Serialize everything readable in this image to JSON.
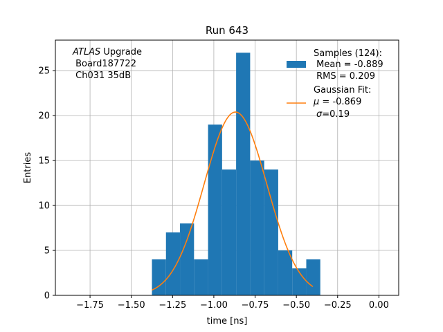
{
  "chart_data": {
    "type": "bar",
    "title": "Run 643",
    "xlabel": "time [ns]",
    "ylabel": "Entries",
    "xlim": [
      -1.96,
      0.12
    ],
    "ylim": [
      0,
      28.4
    ],
    "xticks": [
      -1.75,
      -1.5,
      -1.25,
      -1.0,
      -0.75,
      -0.5,
      -0.25,
      0.0
    ],
    "xtick_labels": [
      "−1.75",
      "−1.50",
      "−1.25",
      "−1.00",
      "−0.75",
      "−0.50",
      "−0.25",
      "0.00"
    ],
    "yticks": [
      0,
      5,
      10,
      15,
      20,
      25
    ],
    "ytick_labels": [
      "0",
      "5",
      "10",
      "15",
      "20",
      "25"
    ],
    "grid": true,
    "histogram": {
      "name": "Samples (124):",
      "color": "#1f77b4",
      "bin_edges": [
        -1.375,
        -1.29,
        -1.205,
        -1.12,
        -1.035,
        -0.95,
        -0.865,
        -0.78,
        -0.695,
        -0.61,
        -0.525,
        -0.44
      ],
      "bin_edges_last": -0.355,
      "counts": [
        4,
        7,
        8,
        4,
        19,
        14,
        27,
        15,
        14,
        5,
        3,
        4
      ]
    },
    "fit": {
      "name": "Gaussian Fit:",
      "color": "#ff7f0e",
      "mu": -0.869,
      "sigma": 0.19,
      "amplitude": 20.4,
      "x_range": [
        -1.375,
        -0.4
      ]
    },
    "annotation": {
      "line1_italic": "ATLAS",
      "line1_rest": " Upgrade",
      "line2": " Board187722",
      "line3": " Ch031 35dB"
    },
    "legend": {
      "placement": "top-right",
      "samples_title": "Samples (124):",
      "samples_mean": " Mean = -0.889",
      "samples_rms": " RMS = 0.209",
      "fit_title": "Gaussian Fit:",
      "fit_mu_sym": "μ",
      "fit_mu_val": " = -0.869",
      "fit_sigma_sym": "σ",
      "fit_sigma_val": "=0.19"
    }
  }
}
